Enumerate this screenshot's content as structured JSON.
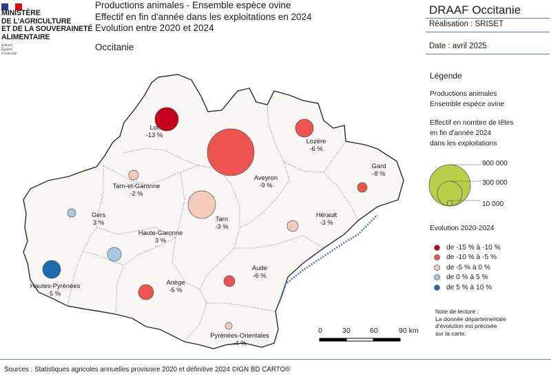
{
  "header": {
    "ministry_lines": [
      "MINISTÈRE",
      "DE L'AGRICULTURE",
      "ET DE LA SOUVERAINETÉ",
      "ALIMENTAIRE"
    ],
    "motto_lines": [
      "Liberté",
      "Égalité",
      "Fraternité"
    ],
    "title_lines": [
      "Productions animales - Ensemble espèce ovine",
      "Effectif en fin d'année dans les exploitations en 2024",
      "Evolution entre 2020 et 2024"
    ],
    "region": "Occitanie"
  },
  "panel": {
    "organisation": "DRAAF Occitanie",
    "realisation": "Réalisation : SRISET",
    "date": "Date : avril 2025"
  },
  "legend": {
    "title": "Légende",
    "theme_lines": [
      "Productions animales",
      "Ensemble espèce ovine"
    ],
    "size_title_lines": [
      "Effectif en nombre de têtes",
      "en fin d'année 2024",
      "dans les exploitations"
    ],
    "size_values": [
      "900 000",
      "300 000",
      "10 000"
    ],
    "evolution_title": "Evolution 2020-2024",
    "classes": [
      {
        "label": "de -15 % à -10 %",
        "color": "#c4001f"
      },
      {
        "label": "de -10 % à -5 %",
        "color": "#ef5350"
      },
      {
        "label": "de -5 % à 0 %",
        "color": "#f6cbbb"
      },
      {
        "label": "de 0 % à 5 %",
        "color": "#a9c9e3"
      },
      {
        "label": "de 5 % à 10 %",
        "color": "#1b6aad"
      }
    ],
    "size_symbol_color": "#b9cf48"
  },
  "note_lines": [
    "Note de lecture :",
    "La donnée départementale",
    "d'évolution est précisée",
    "sur la carte."
  ],
  "scale": {
    "labels": [
      "0",
      "30",
      "60",
      "90 km"
    ]
  },
  "sources": "Sources : Statistiques agricoles annuelles provisoire 2020 et définitive 2024 ©IGN BD CARTO®",
  "departments": [
    {
      "name": "Lot",
      "evolution": "-13 %",
      "evolution_value": -13,
      "class": 0,
      "size": "large-1"
    },
    {
      "name": "Lozère",
      "evolution": "-6 %",
      "evolution_value": -6,
      "class": 1
    },
    {
      "name": "Aveyron",
      "evolution": "-9 %",
      "evolution_value": -9,
      "class": 1
    },
    {
      "name": "Gard",
      "evolution": "-8 %",
      "evolution_value": -8,
      "class": 1
    },
    {
      "name": "Tarn-et-Garonne",
      "evolution": "-2 %",
      "evolution_value": -2,
      "class": 2
    },
    {
      "name": "Tarn",
      "evolution": "-3 %",
      "evolution_value": -3,
      "class": 2
    },
    {
      "name": "Gers",
      "evolution": "3 %",
      "evolution_value": 3,
      "class": 3
    },
    {
      "name": "Hérault",
      "evolution": "-3 %",
      "evolution_value": -3,
      "class": 2
    },
    {
      "name": "Haute-Garonne",
      "evolution": "3 %",
      "evolution_value": 3,
      "class": 3
    },
    {
      "name": "Hautes-Pyrénées",
      "evolution": "5 %",
      "evolution_value": 5,
      "class": 4
    },
    {
      "name": "Aude",
      "evolution": "-6 %",
      "evolution_value": -6,
      "class": 1
    },
    {
      "name": "Ariège",
      "evolution": "-5 %",
      "evolution_value": -5,
      "class": 1
    },
    {
      "name": "Pyrénées-Orientales",
      "evolution": "-4 %",
      "evolution_value": -4,
      "class": 2
    }
  ]
}
